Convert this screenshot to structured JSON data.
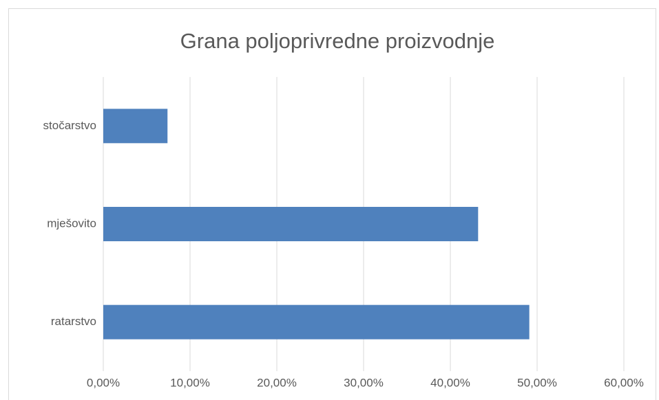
{
  "chart_data": {
    "type": "bar",
    "orientation": "horizontal",
    "title": "Grana poljoprivredne proizvodnje",
    "categories": [
      "stočarstvo",
      "mješovito",
      "ratarstvo"
    ],
    "values": [
      7.4,
      43.2,
      49.1
    ],
    "color": "#4f81bd",
    "xlim": [
      0,
      60
    ],
    "xticks": [
      {
        "value": 0,
        "label": "0,00%"
      },
      {
        "value": 10,
        "label": "10,00%"
      },
      {
        "value": 20,
        "label": "20,00%"
      },
      {
        "value": 30,
        "label": "30,00%"
      },
      {
        "value": 40,
        "label": "40,00%"
      },
      {
        "value": 50,
        "label": "50,00%"
      },
      {
        "value": 60,
        "label": "60,00%"
      }
    ],
    "grid": true
  }
}
